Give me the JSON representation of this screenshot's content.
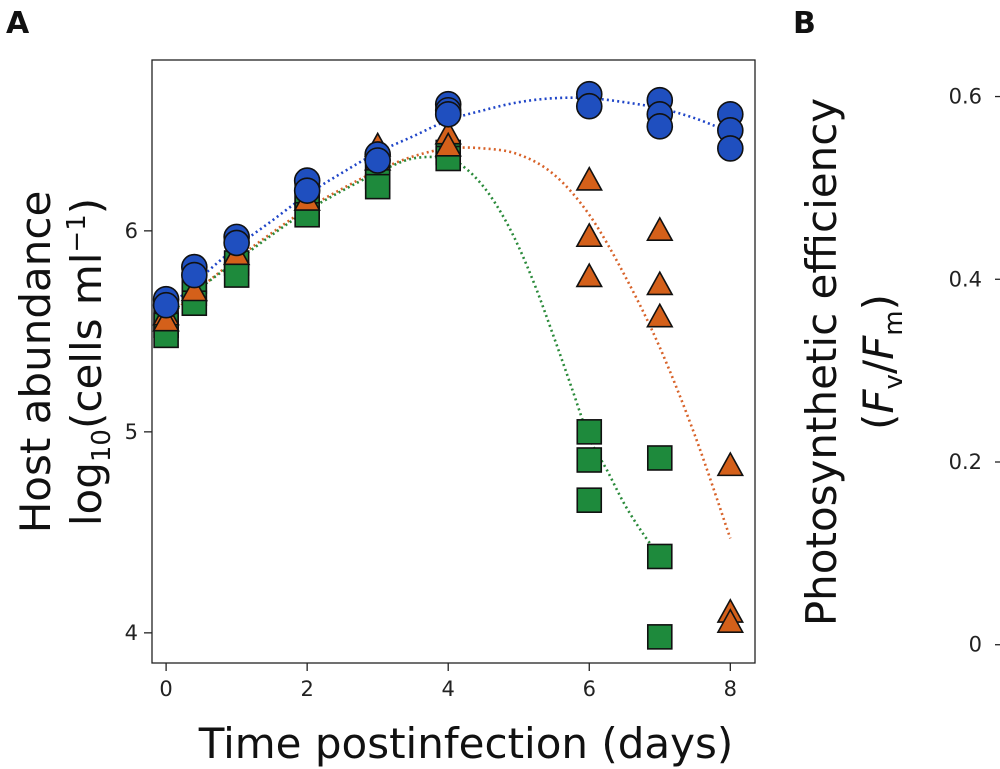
{
  "panels": {
    "a_label": "A",
    "b_label": "B"
  },
  "colors": {
    "blue": "#1f4fbf",
    "orange": "#d4601a",
    "green": "#1e8a3c",
    "fit_blue": "#2046c8",
    "fit_orange": "#d8632a",
    "fit_green": "#2a8a3a"
  },
  "chart_data": [
    {
      "panel": "A",
      "type": "scatter",
      "title": "",
      "xlabel": "Time postinfection (days)",
      "ylabel_line1": "Host abundance",
      "ylabel_line2_prefix": "log",
      "ylabel_line2_sub": "10",
      "ylabel_line2_mid": "(cells ml",
      "ylabel_line2_sup": "−1",
      "ylabel_line2_suffix": ")",
      "xlim": [
        -0.2,
        8.35
      ],
      "ylim": [
        3.85,
        6.85
      ],
      "xticks": [
        0,
        2,
        4,
        6,
        8
      ],
      "yticks": [
        4,
        5,
        6
      ],
      "grid": false,
      "legend": "none",
      "series": [
        {
          "marker": "circle",
          "color": "blue",
          "points": [
            [
              0,
              5.66
            ],
            [
              0,
              5.63
            ],
            [
              0.4,
              5.82
            ],
            [
              0.4,
              5.78
            ],
            [
              1,
              5.97
            ],
            [
              1,
              5.94
            ],
            [
              2,
              6.25
            ],
            [
              2,
              6.2
            ],
            [
              3,
              6.38
            ],
            [
              3,
              6.35
            ],
            [
              4,
              6.63
            ],
            [
              4,
              6.6
            ],
            [
              4,
              6.58
            ],
            [
              6,
              6.68
            ],
            [
              6,
              6.62
            ],
            [
              7,
              6.65
            ],
            [
              7,
              6.58
            ],
            [
              7,
              6.52
            ],
            [
              8,
              6.58
            ],
            [
              8,
              6.5
            ],
            [
              8,
              6.41
            ]
          ]
        },
        {
          "marker": "triangle",
          "color": "orange",
          "points": [
            [
              0,
              5.58
            ],
            [
              0,
              5.55
            ],
            [
              0.4,
              5.7
            ],
            [
              1,
              5.88
            ],
            [
              2,
              6.15
            ],
            [
              3,
              6.42
            ],
            [
              3,
              6.35
            ],
            [
              4,
              6.48
            ],
            [
              4,
              6.42
            ],
            [
              6,
              6.25
            ],
            [
              6,
              5.97
            ],
            [
              6,
              5.77
            ],
            [
              7,
              6.0
            ],
            [
              7,
              5.73
            ],
            [
              7,
              5.57
            ],
            [
              8,
              4.83
            ],
            [
              8,
              4.1
            ],
            [
              8,
              4.05
            ]
          ]
        },
        {
          "marker": "square",
          "color": "green",
          "points": [
            [
              0,
              5.57
            ],
            [
              0,
              5.53
            ],
            [
              0,
              5.48
            ],
            [
              0.4,
              5.75
            ],
            [
              0.4,
              5.69
            ],
            [
              0.4,
              5.64
            ],
            [
              1,
              5.84
            ],
            [
              1,
              5.78
            ],
            [
              2,
              6.17
            ],
            [
              2,
              6.12
            ],
            [
              2,
              6.08
            ],
            [
              3,
              6.32
            ],
            [
              3,
              6.27
            ],
            [
              3,
              6.22
            ],
            [
              4,
              6.39
            ],
            [
              4,
              6.36
            ],
            [
              6,
              5.0
            ],
            [
              6,
              4.86
            ],
            [
              6,
              4.66
            ],
            [
              7,
              4.87
            ],
            [
              7,
              4.38
            ],
            [
              7,
              3.98
            ]
          ]
        }
      ],
      "fits": [
        {
          "color": "fit_blue",
          "x": [
            0,
            0.5,
            1,
            1.5,
            2,
            2.5,
            3,
            3.5,
            4,
            4.5,
            5,
            5.5,
            6,
            6.5,
            7,
            7.5,
            8
          ],
          "y": [
            5.6,
            5.77,
            5.92,
            6.05,
            6.18,
            6.29,
            6.39,
            6.47,
            6.55,
            6.6,
            6.64,
            6.66,
            6.66,
            6.64,
            6.61,
            6.56,
            6.49
          ]
        },
        {
          "color": "fit_orange",
          "x": [
            0,
            0.5,
            1,
            1.5,
            2,
            2.5,
            3,
            3.5,
            4,
            4.5,
            5,
            5.5,
            6,
            6.5,
            7,
            7.5,
            8
          ],
          "y": [
            5.56,
            5.72,
            5.86,
            5.99,
            6.11,
            6.21,
            6.3,
            6.37,
            6.41,
            6.41,
            6.38,
            6.28,
            6.08,
            5.78,
            5.42,
            4.98,
            4.47
          ]
        },
        {
          "color": "fit_green",
          "x": [
            0,
            0.5,
            1,
            1.5,
            2,
            2.5,
            3,
            3.5,
            4,
            4.25,
            4.5,
            4.75,
            5,
            5.25,
            5.5,
            5.75,
            6,
            6.25,
            6.5,
            6.75,
            7
          ],
          "y": [
            5.57,
            5.72,
            5.85,
            5.98,
            6.1,
            6.2,
            6.29,
            6.36,
            6.36,
            6.31,
            6.22,
            6.09,
            5.92,
            5.71,
            5.47,
            5.22,
            4.97,
            4.81,
            4.64,
            4.5,
            4.38
          ]
        }
      ]
    },
    {
      "panel": "B",
      "type": "scatter",
      "title": "",
      "ylabel_line1": "Photosynthetic efficiency",
      "ylabel_line2_open": "(",
      "ylabel_line2_F1": "F",
      "ylabel_line2_sub1": "v",
      "ylabel_line2_slash": "/",
      "ylabel_line2_F2": "F",
      "ylabel_line2_sub2": "m",
      "ylabel_line2_close": ")",
      "ylim": [
        -0.02,
        0.64
      ],
      "yticks_labels": [
        "0.6",
        "0.4",
        "0.2",
        "0"
      ],
      "yticks": [
        0.6,
        0.4,
        0.2,
        0
      ]
    }
  ]
}
